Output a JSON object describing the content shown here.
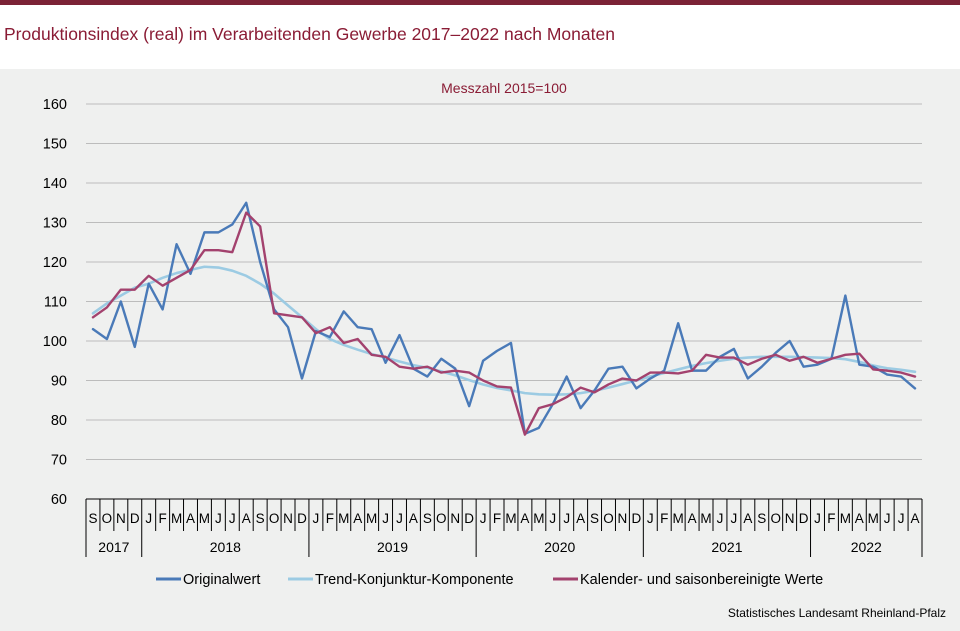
{
  "title": "Produktionsindex (real) im Verarbeitenden Gewerbe 2017–2022 nach Monaten",
  "source": "Statistisches Landesamt Rheinland-Pfalz",
  "colors": {
    "title": "#8a1c35",
    "original": "#4a7ab8",
    "trend": "#9ccbe3",
    "adjusted": "#a3426e",
    "background": "#eff0ef",
    "topbar": "#7b2236"
  },
  "chart_data": {
    "type": "line",
    "subtitle": "Messzahl  2015=100",
    "ylim": [
      60,
      160
    ],
    "yticks": [
      60,
      70,
      80,
      90,
      100,
      110,
      120,
      130,
      140,
      150,
      160
    ],
    "grid": true,
    "legend_position": "bottom",
    "months": [
      "S",
      "O",
      "N",
      "D",
      "J",
      "F",
      "M",
      "A",
      "M",
      "J",
      "J",
      "A",
      "S",
      "O",
      "N",
      "D",
      "J",
      "F",
      "M",
      "A",
      "M",
      "J",
      "J",
      "A",
      "S",
      "O",
      "N",
      "D",
      "J",
      "F",
      "M",
      "A",
      "M",
      "J",
      "J",
      "A",
      "S",
      "O",
      "N",
      "D",
      "J",
      "F",
      "M",
      "A",
      "M",
      "J",
      "J",
      "A",
      "S",
      "O",
      "N",
      "D",
      "J",
      "F",
      "M",
      "A",
      "M",
      "J",
      "J",
      "A"
    ],
    "years": [
      {
        "label": "2017",
        "start": 0,
        "end": 4
      },
      {
        "label": "2018",
        "start": 4,
        "end": 16
      },
      {
        "label": "2019",
        "start": 16,
        "end": 28
      },
      {
        "label": "2020",
        "start": 28,
        "end": 40
      },
      {
        "label": "2021",
        "start": 40,
        "end": 52
      },
      {
        "label": "2022",
        "start": 52,
        "end": 60
      }
    ],
    "series": [
      {
        "name": "Originalwert",
        "color": "#4a7ab8",
        "values": [
          103,
          100.5,
          110,
          98.5,
          114.5,
          108,
          124.5,
          117,
          127.5,
          127.5,
          129.5,
          135,
          120,
          108,
          103.5,
          90.5,
          102.5,
          101,
          107.5,
          103.5,
          103,
          94.5,
          101.5,
          93,
          91,
          95.5,
          93,
          83.5,
          95,
          97.5,
          99.5,
          76.5,
          78,
          84,
          91,
          83,
          87.5,
          93,
          93.5,
          88,
          90.5,
          92.5,
          104.5,
          92.5,
          92.5,
          96,
          98,
          90.5,
          93.5,
          97,
          100,
          93.5,
          94,
          95.5,
          111.5,
          94,
          93.5,
          91.5,
          91,
          88
        ]
      },
      {
        "name": "Trend-Konjunktur-Komponente",
        "color": "#9ccbe3",
        "values": [
          107,
          109.5,
          111.5,
          113.5,
          114.5,
          116,
          117.2,
          118,
          118.8,
          118.6,
          117.8,
          116.5,
          114.5,
          112,
          109,
          106,
          103,
          100.5,
          99,
          97.8,
          96.7,
          95.8,
          94.8,
          93.9,
          93.2,
          92.3,
          91.3,
          90.1,
          89,
          88.1,
          87.5,
          86.8,
          86.5,
          86.4,
          86.5,
          86.8,
          87.4,
          88.2,
          89.1,
          90,
          91,
          91.9,
          92.8,
          93.7,
          94.4,
          95,
          95.5,
          95.8,
          96,
          96,
          96,
          95.9,
          95.8,
          95.7,
          95.4,
          94.7,
          93.8,
          93.1,
          92.7,
          92.2
        ]
      },
      {
        "name": "Kalender- und saisonbereinigte Werte",
        "color": "#a3426e",
        "values": [
          106,
          108.5,
          113,
          113,
          116.5,
          114,
          116,
          118,
          123,
          123,
          122.5,
          132.5,
          129,
          107,
          106.5,
          106,
          102,
          103.5,
          99.5,
          100.5,
          96.5,
          96,
          93.5,
          93,
          93.5,
          92,
          92.5,
          92,
          90,
          88.5,
          88.2,
          76.3,
          83,
          84,
          85.8,
          88.2,
          87,
          89,
          90.5,
          90,
          92,
          92,
          91.8,
          92.5,
          96.5,
          95.8,
          95.8,
          94,
          95.5,
          96.5,
          95,
          96,
          94.5,
          95.5,
          96.5,
          96.8,
          92.8,
          92.5,
          92,
          91
        ]
      }
    ]
  }
}
